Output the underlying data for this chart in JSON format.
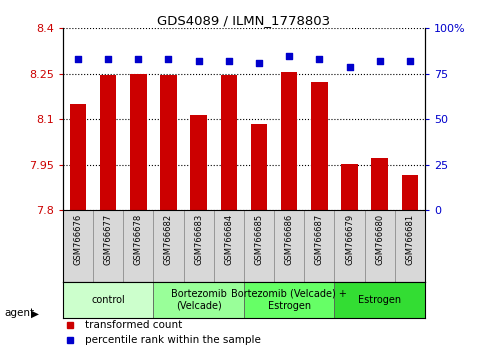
{
  "title": "GDS4089 / ILMN_1778803",
  "samples": [
    "GSM766676",
    "GSM766677",
    "GSM766678",
    "GSM766682",
    "GSM766683",
    "GSM766684",
    "GSM766685",
    "GSM766686",
    "GSM766687",
    "GSM766679",
    "GSM766680",
    "GSM766681"
  ],
  "bar_values": [
    8.15,
    8.245,
    8.248,
    8.246,
    8.115,
    8.246,
    8.085,
    8.255,
    8.222,
    7.952,
    7.972,
    7.915
  ],
  "dot_values": [
    83,
    83,
    83,
    83,
    82,
    82,
    81,
    85,
    83,
    79,
    82,
    82
  ],
  "ymin": 7.8,
  "ymax": 8.4,
  "yticks": [
    7.8,
    7.95,
    8.1,
    8.25,
    8.4
  ],
  "ytick_labels": [
    "7.8",
    "7.95",
    "8.1",
    "8.25",
    "8.4"
  ],
  "y2min": 0,
  "y2max": 100,
  "y2ticks": [
    0,
    25,
    50,
    75,
    100
  ],
  "y2tick_labels": [
    "0",
    "25",
    "50",
    "75",
    "100%"
  ],
  "bar_color": "#cc0000",
  "dot_color": "#0000cc",
  "groups": [
    {
      "label": "control",
      "start": 0,
      "end": 2,
      "color": "#ccffcc"
    },
    {
      "label": "Bortezomib\n(Velcade)",
      "start": 3,
      "end": 5,
      "color": "#99ff99"
    },
    {
      "label": "Bortezomib (Velcade) +\nEstrogen",
      "start": 6,
      "end": 8,
      "color": "#66ff66"
    },
    {
      "label": "Estrogen",
      "start": 9,
      "end": 11,
      "color": "#33dd33"
    }
  ],
  "legend_bar_label": "transformed count",
  "legend_dot_label": "percentile rank within the sample",
  "agent_label": "agent",
  "bar_label_color": "#cc0000",
  "dot_label_color": "#0000cc",
  "sample_box_color": "#d8d8d8",
  "sample_box_edge": "#888888"
}
